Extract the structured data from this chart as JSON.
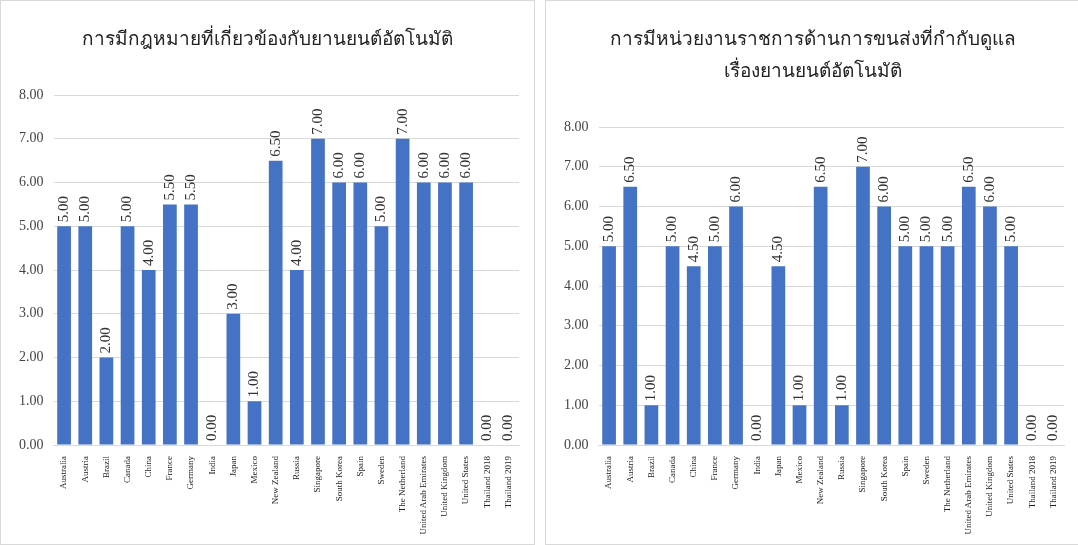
{
  "chart_data": [
    {
      "type": "bar",
      "title": "การมีกฎหมายที่เกี่ยวข้องกับยานยนต์อัตโนมัติ",
      "categories": [
        "Australia",
        "Austria",
        "Brazil",
        "Canada",
        "China",
        "France",
        "Germany",
        "India",
        "Japan",
        "Mexico",
        "New Zealand",
        "Russia",
        "Singapore",
        "South Korea",
        "Spain",
        "Sweden",
        "The Netherland",
        "United Arab Emirates",
        "United Kingdom",
        "United States",
        "Thailand 2018",
        "Thailand 2019"
      ],
      "values": [
        5,
        5,
        2,
        5,
        4,
        5.5,
        5.5,
        0,
        3,
        1,
        6.5,
        4,
        7,
        6,
        6,
        5,
        7,
        6,
        6,
        6,
        0,
        0
      ],
      "value_labels": [
        "5.00",
        "5.00",
        "2.00",
        "5.00",
        "4.00",
        "5.50",
        "5.50",
        "0.00",
        "3.00",
        "1.00",
        "6.50",
        "4.00",
        "7.00",
        "6.00",
        "6.00",
        "5.00",
        "7.00",
        "6.00",
        "6.00",
        "6.00",
        "0.00",
        "0.00"
      ],
      "color": "#4472c4",
      "ylim": [
        0,
        8
      ],
      "yticks": [
        {
          "value": 0,
          "label": "0.00"
        },
        {
          "value": 1,
          "label": "1.00"
        },
        {
          "value": 2,
          "label": "2.00"
        },
        {
          "value": 3,
          "label": "3.00"
        },
        {
          "value": 4,
          "label": "4.00"
        },
        {
          "value": 5,
          "label": "5.00"
        },
        {
          "value": 6,
          "label": "6.00"
        },
        {
          "value": 7,
          "label": "7.00"
        },
        {
          "value": 8,
          "label": "8.00"
        }
      ],
      "grid": "y"
    },
    {
      "type": "bar",
      "title": "การมีหน่วยงานราชการด้านการขนส่งที่กำกับดูแล\nเรื่องยานยนต์อัตโนมัติ",
      "categories": [
        "Australia",
        "Austria",
        "Brazil",
        "Canada",
        "China",
        "France",
        "Germany",
        "India",
        "Japan",
        "Mexico",
        "New Zealand",
        "Russia",
        "Singapore",
        "South Korea",
        "Spain",
        "Sweden",
        "The Netherland",
        "United Arab Emirates",
        "United Kingdom",
        "United States",
        "Thailand 2018",
        "Thailand 2019"
      ],
      "values": [
        5,
        6.5,
        1,
        5,
        4.5,
        5,
        6,
        0,
        4.5,
        1,
        6.5,
        1,
        7,
        6,
        5,
        5,
        5,
        6.5,
        6,
        5,
        0,
        0
      ],
      "value_labels": [
        "5.00",
        "6.50",
        "1.00",
        "5.00",
        "4.50",
        "5.00",
        "6.00",
        "0.00",
        "4.50",
        "1.00",
        "6.50",
        "1.00",
        "7.00",
        "6.00",
        "5.00",
        "5.00",
        "5.00",
        "6.50",
        "6.00",
        "5.00",
        "0.00",
        "0.00"
      ],
      "color": "#4472c4",
      "ylim": [
        0,
        8
      ],
      "yticks": [
        {
          "value": 0,
          "label": "0.00"
        },
        {
          "value": 1,
          "label": "1.00"
        },
        {
          "value": 2,
          "label": "2.00"
        },
        {
          "value": 3,
          "label": "3.00"
        },
        {
          "value": 4,
          "label": "4.00"
        },
        {
          "value": 5,
          "label": "5.00"
        },
        {
          "value": 6,
          "label": "6.00"
        },
        {
          "value": 7,
          "label": "7.00"
        },
        {
          "value": 8,
          "label": "8.00"
        }
      ],
      "grid": "y"
    }
  ]
}
